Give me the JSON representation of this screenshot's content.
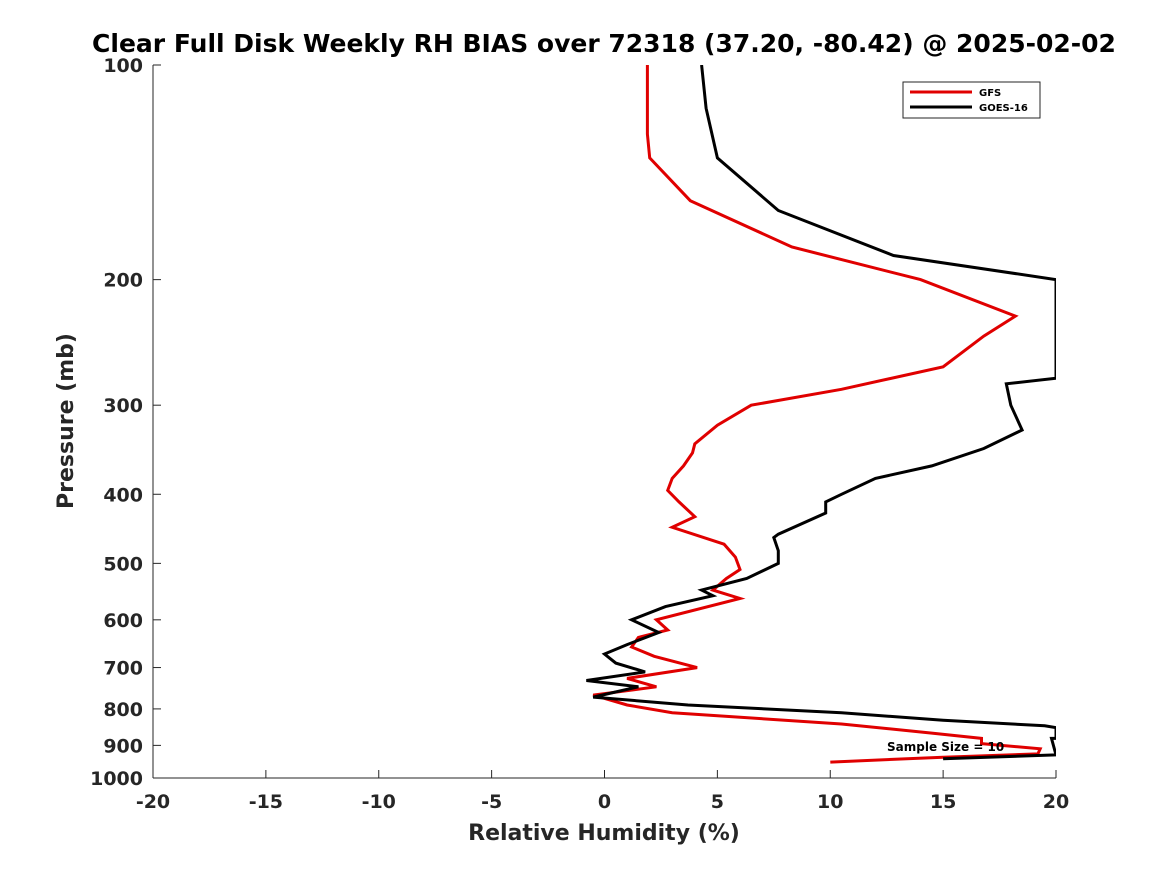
{
  "chart_data": {
    "type": "line",
    "title": "Clear Full Disk Weekly RH BIAS over 72318 (37.20, -80.42) @ 2025-02-02",
    "xlabel": "Relative Humidity (%)",
    "ylabel": "Pressure (mb)",
    "xlim": [
      -20,
      20
    ],
    "ylim": [
      1000,
      100
    ],
    "yscale": "log",
    "y_reversed": true,
    "xticks": [
      -20,
      -15,
      -10,
      -5,
      0,
      5,
      10,
      15,
      20
    ],
    "xtick_labels": [
      "-20",
      "-15",
      "-10",
      "-5",
      "0",
      "5",
      "10",
      "15",
      "20"
    ],
    "yticks": [
      100,
      200,
      300,
      400,
      500,
      600,
      700,
      800,
      900,
      1000
    ],
    "ytick_labels": [
      "100",
      "200",
      "300",
      "400",
      "500",
      "600",
      "700",
      "800",
      "900",
      "1000"
    ],
    "grid": false,
    "legend_position": "top-right",
    "annotation": "Sample Size = 10",
    "series": [
      {
        "name": "GFS",
        "color": "#e00000",
        "points": [
          [
            1.9,
            100
          ],
          [
            1.9,
            125
          ],
          [
            2.0,
            135
          ],
          [
            3.8,
            155
          ],
          [
            8.3,
            180
          ],
          [
            14.0,
            200
          ],
          [
            18.2,
            225
          ],
          [
            16.8,
            240
          ],
          [
            15.0,
            265
          ],
          [
            10.5,
            285
          ],
          [
            6.5,
            300
          ],
          [
            5.0,
            320
          ],
          [
            4.0,
            340
          ],
          [
            3.9,
            350
          ],
          [
            3.5,
            365
          ],
          [
            3.0,
            380
          ],
          [
            2.8,
            395
          ],
          [
            3.3,
            410
          ],
          [
            4.0,
            430
          ],
          [
            3.0,
            445
          ],
          [
            5.3,
            470
          ],
          [
            5.8,
            490
          ],
          [
            6.0,
            510
          ],
          [
            5.4,
            525
          ],
          [
            4.8,
            545
          ],
          [
            6.0,
            560
          ],
          [
            2.3,
            600
          ],
          [
            2.8,
            620
          ],
          [
            1.5,
            635
          ],
          [
            1.2,
            655
          ],
          [
            2.2,
            675
          ],
          [
            4.1,
            700
          ],
          [
            1.0,
            725
          ],
          [
            2.3,
            745
          ],
          [
            -0.5,
            765
          ],
          [
            1.0,
            790
          ],
          [
            3.0,
            810
          ],
          [
            10.5,
            840
          ],
          [
            14.5,
            865
          ],
          [
            16.7,
            880
          ],
          [
            16.7,
            895
          ],
          [
            19.3,
            910
          ],
          [
            19.2,
            925
          ],
          [
            15.0,
            935
          ],
          [
            10.0,
            950
          ]
        ]
      },
      {
        "name": "GOES-16",
        "color": "#000000",
        "points": [
          [
            4.3,
            100
          ],
          [
            4.5,
            115
          ],
          [
            5.0,
            135
          ],
          [
            7.7,
            160
          ],
          [
            12.8,
            185
          ],
          [
            20.0,
            200
          ],
          [
            20.0,
            275
          ],
          [
            17.8,
            280
          ],
          [
            18.0,
            300
          ],
          [
            18.5,
            325
          ],
          [
            16.8,
            345
          ],
          [
            14.5,
            365
          ],
          [
            12.0,
            380
          ],
          [
            10.5,
            400
          ],
          [
            9.8,
            410
          ],
          [
            9.8,
            425
          ],
          [
            7.7,
            455
          ],
          [
            7.5,
            460
          ],
          [
            7.7,
            480
          ],
          [
            7.7,
            500
          ],
          [
            6.3,
            525
          ],
          [
            4.3,
            545
          ],
          [
            4.8,
            555
          ],
          [
            2.7,
            575
          ],
          [
            1.2,
            600
          ],
          [
            2.4,
            625
          ],
          [
            1.0,
            650
          ],
          [
            0.0,
            670
          ],
          [
            0.5,
            690
          ],
          [
            1.8,
            710
          ],
          [
            -0.8,
            730
          ],
          [
            1.5,
            745
          ],
          [
            -0.5,
            770
          ],
          [
            3.7,
            790
          ],
          [
            10.5,
            810
          ],
          [
            15.0,
            830
          ],
          [
            19.5,
            845
          ],
          [
            20.0,
            850
          ],
          [
            20.0,
            880
          ],
          [
            19.8,
            880
          ],
          [
            20.0,
            928
          ],
          [
            15.0,
            940
          ]
        ]
      }
    ]
  }
}
